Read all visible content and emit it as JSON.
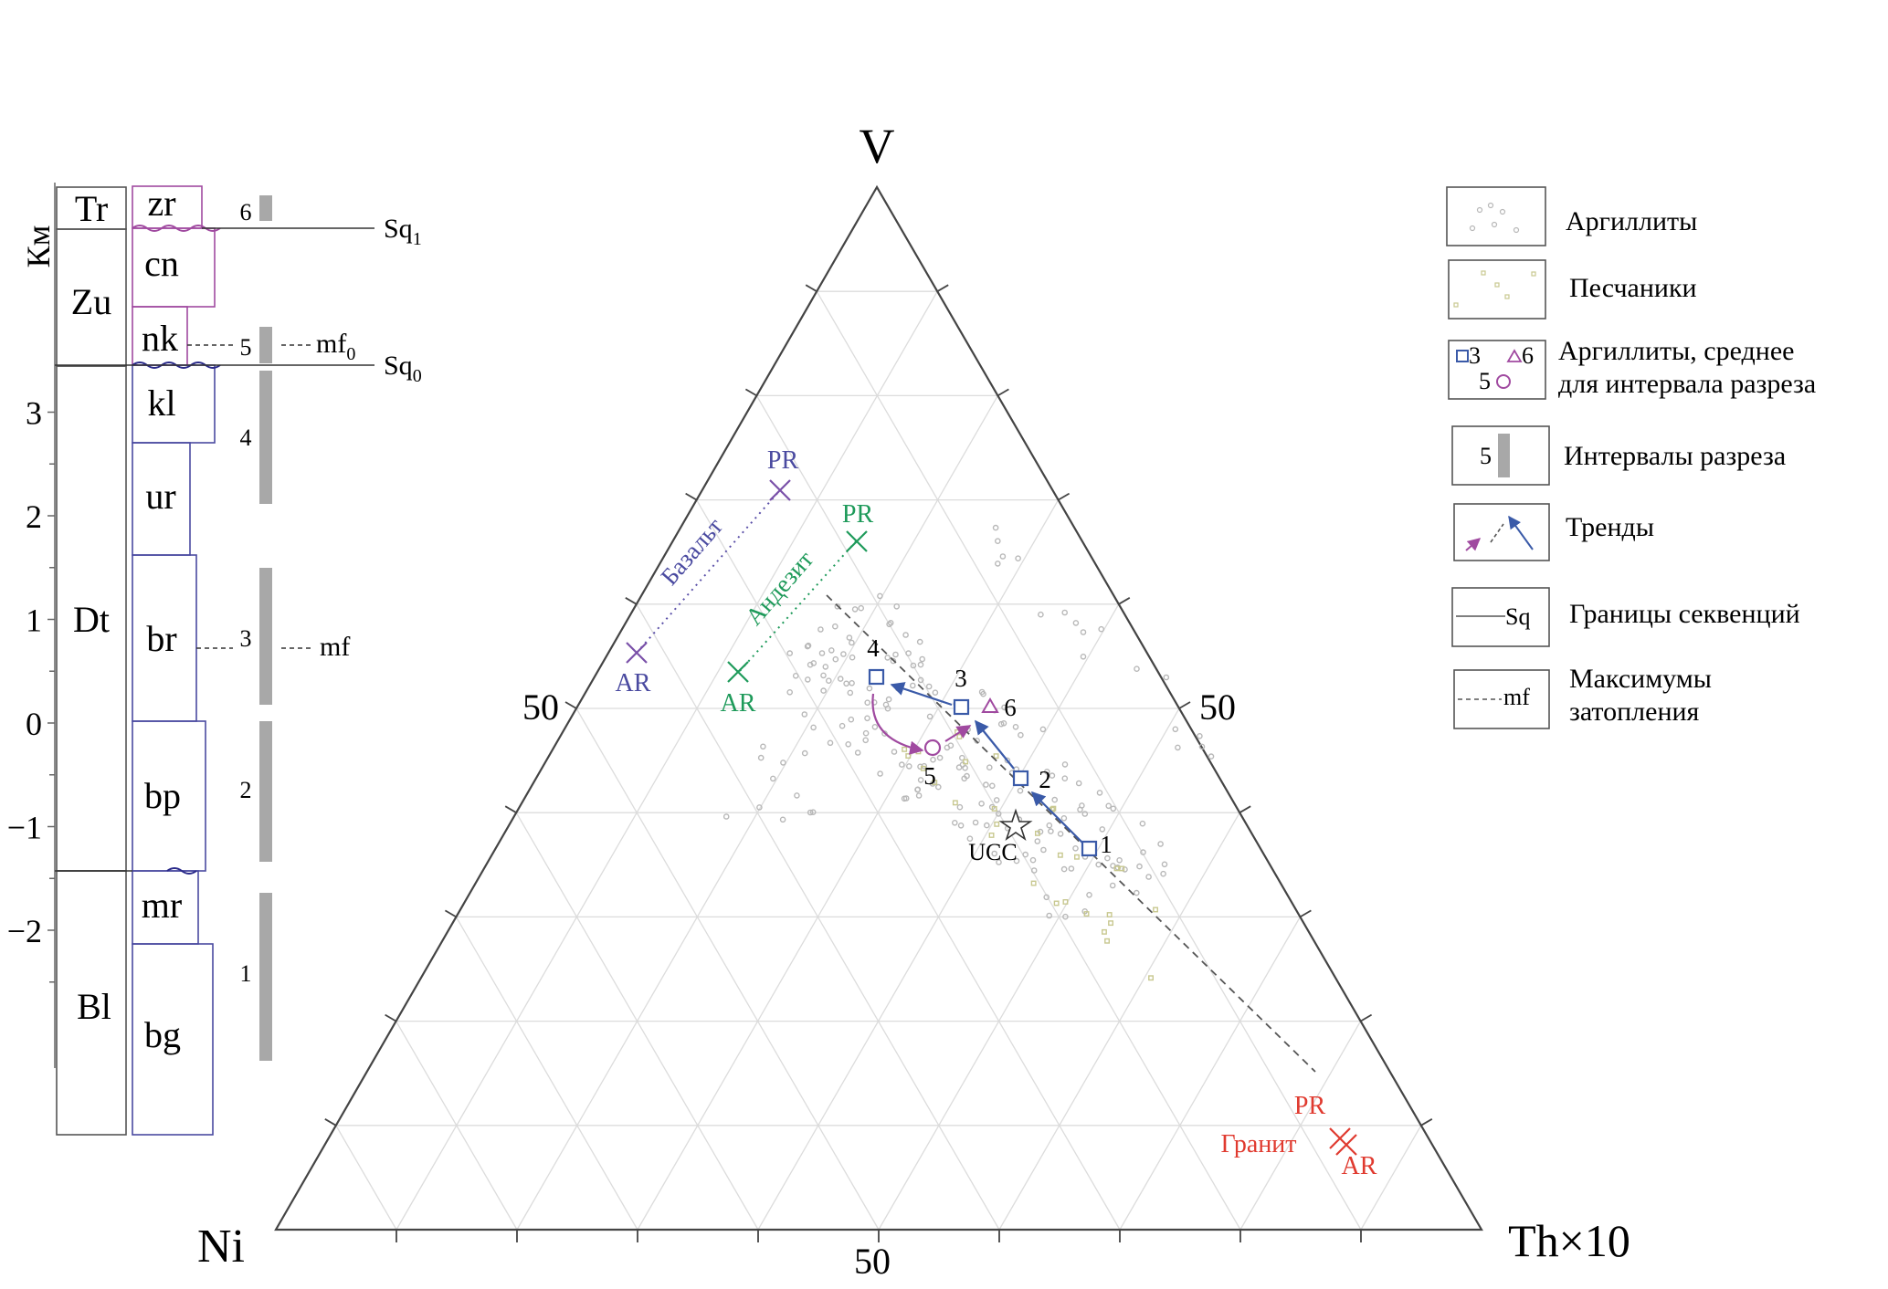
{
  "column": {
    "axis_unit": "Км",
    "ticks": [
      "3",
      "2",
      "1",
      "0",
      "−1",
      "−2"
    ],
    "tick_values": [
      3,
      2,
      1,
      0,
      -1,
      -2
    ],
    "groups": [
      "Tr",
      "Zu",
      "Dt",
      "Bl"
    ],
    "formations": [
      "zr",
      "cn",
      "nk",
      "kl",
      "ur",
      "br",
      "bp",
      "mr",
      "bg"
    ],
    "intervals": [
      "6",
      "5",
      "4",
      "3",
      "2",
      "1"
    ],
    "sequence_boundaries": [
      "Sq",
      "Sq"
    ],
    "sequence_subscripts": [
      "1",
      "0"
    ],
    "max_flooding": [
      "mf",
      "mf"
    ],
    "max_flooding_subscript": "0"
  },
  "ternary": {
    "apex_top": "V",
    "apex_left": "Ni",
    "apex_right": "Th×10",
    "mid_left": "50",
    "mid_right": "50",
    "mid_bottom": "50",
    "rocks": {
      "basalt": {
        "label": "Базальт",
        "color": "#5a4fa8",
        "ar": "AR",
        "pr": "PR"
      },
      "andesite": {
        "label": "Андезит",
        "color": "#1e9a5a",
        "ar": "AR",
        "pr": "PR"
      },
      "granite": {
        "label": "Гранит",
        "color": "#e03a2f",
        "ar": "AR",
        "pr": "PR"
      }
    },
    "mean_points": [
      "1",
      "2",
      "3",
      "4",
      "5",
      "6"
    ],
    "ucc": "UCC"
  },
  "legend": {
    "items": [
      "Аргиллиты",
      "Песчаники",
      "Аргиллиты, среднее",
      "для интервала разреза",
      "Интервалы разреза",
      "Тренды",
      "Границы секвенций",
      "Максимумы",
      "затопления"
    ],
    "symbol_labels": [
      "3",
      "6",
      "5",
      "5",
      "Sq",
      "mf"
    ]
  },
  "colors": {
    "mudstone_mean": "#3a5aa8",
    "mudstone_mean_alt": "#a04aa0",
    "trend_blue": "#3a5aa8",
    "trend_magenta": "#a04aa0",
    "grid": "#dcdcdc",
    "mudstone_dots": "#b8b8b8",
    "sandstone_dots": "#c8c890"
  }
}
